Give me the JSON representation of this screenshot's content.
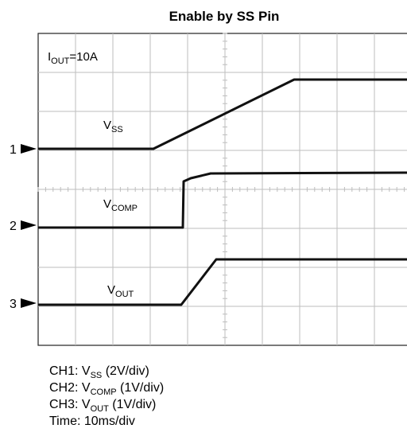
{
  "title": "Enable by SS Pin",
  "annotation": {
    "main": "I",
    "sub": "OUT",
    "rest": "=10A"
  },
  "channel_markers": [
    "1",
    "2",
    "3"
  ],
  "trace_labels": [
    {
      "main": "V",
      "sub": "SS"
    },
    {
      "main": "V",
      "sub": "COMP"
    },
    {
      "main": "V",
      "sub": "OUT"
    }
  ],
  "caption": [
    {
      "main": "CH1: V",
      "sub": "SS",
      "rest": " (2V/div)"
    },
    {
      "main": "CH2: V",
      "sub": "COMP",
      "rest": " (1V/div)"
    },
    {
      "main": "CH3: V",
      "sub": "OUT",
      "rest": " (1V/div)"
    },
    {
      "main": "Time: 10ms/div"
    }
  ]
}
